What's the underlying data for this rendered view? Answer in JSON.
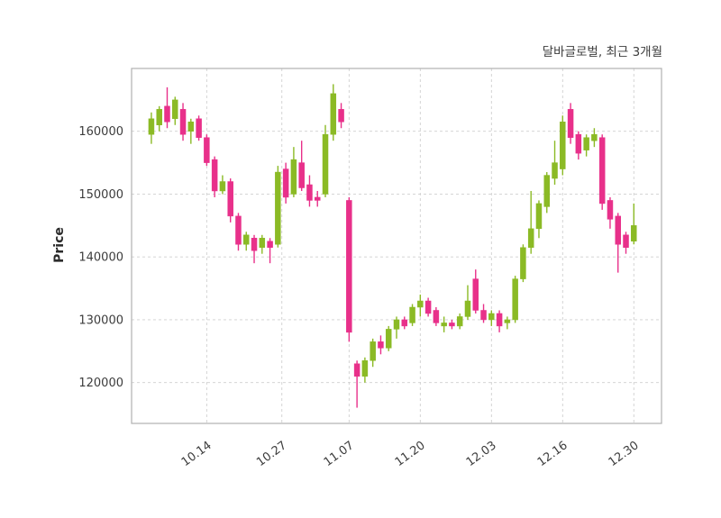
{
  "title": "달바글로벌, 최근 3개월",
  "ylabel": "Price",
  "colors": {
    "up": "#8bba25",
    "down": "#e8308a",
    "grid": "#cfcfcf",
    "border": "#b0b0b0",
    "text": "#3c3c3c",
    "background": "#ffffff"
  },
  "chart_data": {
    "type": "candlestick",
    "title": "달바글로벌, 최근 3개월",
    "ylabel": "Price",
    "xlabel": "",
    "grid": "dashed",
    "legend": "none",
    "ylim": [
      113500,
      170000
    ],
    "yticks": [
      120000,
      130000,
      140000,
      150000,
      160000
    ],
    "xticks": [
      {
        "label": "10.14",
        "index": 7
      },
      {
        "label": "10.27",
        "index": 16.5
      },
      {
        "label": "11.07",
        "index": 25
      },
      {
        "label": "11.20",
        "index": 34
      },
      {
        "label": "12.03",
        "index": 43
      },
      {
        "label": "12.16",
        "index": 52
      },
      {
        "label": "12.30",
        "index": 61
      }
    ],
    "candles_columns": [
      "date",
      "open",
      "high",
      "low",
      "close"
    ],
    "candles": [
      [
        "10.01",
        159500,
        163000,
        158000,
        162000
      ],
      [
        "10.02",
        161000,
        164000,
        160000,
        163500
      ],
      [
        "10.04",
        164000,
        167000,
        160500,
        161500
      ],
      [
        "10.07",
        162000,
        165500,
        161000,
        165000
      ],
      [
        "10.08",
        163500,
        164500,
        158500,
        159500
      ],
      [
        "10.10",
        160000,
        162000,
        158000,
        161500
      ],
      [
        "10.11",
        162000,
        162500,
        158500,
        159000
      ],
      [
        "10.14",
        159000,
        159500,
        154500,
        155000
      ],
      [
        "10.15",
        155500,
        156000,
        149500,
        150500
      ],
      [
        "10.16",
        150500,
        153000,
        150000,
        152000
      ],
      [
        "10.17",
        152000,
        152500,
        145500,
        146500
      ],
      [
        "10.18",
        146500,
        147000,
        141000,
        142000
      ],
      [
        "10.21",
        142000,
        144000,
        141000,
        143500
      ],
      [
        "10.22",
        143000,
        143500,
        139000,
        141000
      ],
      [
        "10.23",
        141500,
        143500,
        140500,
        143000
      ],
      [
        "10.24",
        142500,
        143000,
        139000,
        141500
      ],
      [
        "10.25",
        142000,
        154500,
        141500,
        153500
      ],
      [
        "10.28",
        154000,
        155000,
        148500,
        149500
      ],
      [
        "10.29",
        150000,
        157500,
        149500,
        155500
      ],
      [
        "10.30",
        155000,
        158500,
        150500,
        151000
      ],
      [
        "10.31",
        151500,
        153000,
        148000,
        149000
      ],
      [
        "11.01",
        149500,
        150500,
        148000,
        149000
      ],
      [
        "11.04",
        150000,
        161000,
        149500,
        159500
      ],
      [
        "11.05",
        159500,
        167500,
        158500,
        166000
      ],
      [
        "11.06",
        163500,
        164500,
        160500,
        161500
      ],
      [
        "11.07",
        149000,
        149500,
        126500,
        128000
      ],
      [
        "11.08",
        123000,
        123500,
        116000,
        121000
      ],
      [
        "11.11",
        121000,
        124000,
        120000,
        123500
      ],
      [
        "11.12",
        123500,
        127000,
        122500,
        126500
      ],
      [
        "11.13",
        126500,
        127500,
        124500,
        125500
      ],
      [
        "11.14",
        125500,
        129000,
        125000,
        128500
      ],
      [
        "11.15",
        128500,
        130500,
        127000,
        130000
      ],
      [
        "11.18",
        130000,
        130500,
        128500,
        129000
      ],
      [
        "11.19",
        129500,
        132500,
        129000,
        132000
      ],
      [
        "11.20",
        132000,
        134000,
        130500,
        133000
      ],
      [
        "11.21",
        133000,
        133500,
        130500,
        131000
      ],
      [
        "11.22",
        131500,
        132000,
        129000,
        129500
      ],
      [
        "11.25",
        129000,
        130500,
        128000,
        129500
      ],
      [
        "11.26",
        129500,
        130000,
        128500,
        129000
      ],
      [
        "11.27",
        129000,
        131000,
        128500,
        130500
      ],
      [
        "11.28",
        130500,
        135500,
        130000,
        133000
      ],
      [
        "11.29",
        136500,
        138000,
        131000,
        131500
      ],
      [
        "12.02",
        131500,
        132500,
        129500,
        130000
      ],
      [
        "12.03",
        130000,
        131500,
        129000,
        131000
      ],
      [
        "12.04",
        131000,
        131500,
        128000,
        129000
      ],
      [
        "12.05",
        129500,
        130500,
        128500,
        130000
      ],
      [
        "12.06",
        130000,
        137000,
        129500,
        136500
      ],
      [
        "12.09",
        136500,
        142000,
        136000,
        141500
      ],
      [
        "12.10",
        141500,
        150500,
        140500,
        144500
      ],
      [
        "12.11",
        144500,
        149000,
        143000,
        148500
      ],
      [
        "12.12",
        148000,
        153500,
        147000,
        153000
      ],
      [
        "12.13",
        152500,
        158500,
        151500,
        155000
      ],
      [
        "12.16",
        154000,
        162500,
        153000,
        161500
      ],
      [
        "12.17",
        163500,
        164500,
        158000,
        159000
      ],
      [
        "12.18",
        159500,
        160000,
        155500,
        156500
      ],
      [
        "12.19",
        157000,
        159500,
        156000,
        159000
      ],
      [
        "12.20",
        158500,
        160500,
        157500,
        159500
      ],
      [
        "12.23",
        159000,
        159500,
        147500,
        148500
      ],
      [
        "12.24",
        149000,
        149500,
        144500,
        146000
      ],
      [
        "12.26",
        146500,
        147000,
        137500,
        142000
      ],
      [
        "12.27",
        143500,
        144000,
        140500,
        141500
      ],
      [
        "12.30",
        142500,
        148500,
        142000,
        145000
      ]
    ]
  }
}
